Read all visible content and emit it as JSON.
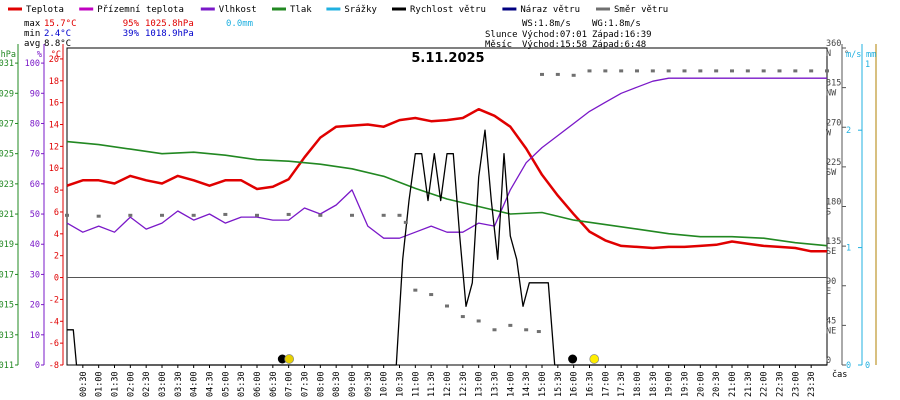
{
  "chart_data": {
    "type": "line",
    "title": "5.11.2025",
    "xlabel": "čas",
    "legend": [
      {
        "name": "Teplota",
        "color": "#e00000"
      },
      {
        "name": "Přízemní teplota",
        "color": "#c000c0"
      },
      {
        "name": "Vlhkost",
        "color": "#7a18c8"
      },
      {
        "name": "Tlak",
        "color": "#228822"
      },
      {
        "name": "Srážky",
        "color": "#20b0e0"
      },
      {
        "name": "Rychlost větru",
        "color": "#000000"
      },
      {
        "name": "Náraz větru",
        "color": "#000080"
      },
      {
        "name": "Směr větru",
        "color": "#707070"
      }
    ],
    "stats": {
      "rows": [
        {
          "label": "max",
          "temp": "15.7°C",
          "hum": "95%",
          "press": "1025.8hPa",
          "rain": "0.0mm"
        },
        {
          "label": "min",
          "temp": "2.4°C",
          "hum": "39%",
          "press": "1018.9hPa"
        },
        {
          "label": "avg",
          "temp": "8.8°C"
        }
      ],
      "wind": {
        "ws": "WS:1.8m/s",
        "wg": "WG:1.8m/s"
      },
      "sun": {
        "label": "Slunce",
        "rise": "Východ:07:01",
        "set": "Západ:16:39"
      },
      "moon": {
        "label": "Měsíc",
        "rise": "Východ:15:58",
        "set": "Západ:6:48"
      }
    },
    "axes": {
      "hpa": {
        "unit": "hPa",
        "ticks": [
          "1031",
          "1029",
          "1027",
          "1025",
          "1023",
          "1021",
          "1019",
          "1017",
          "1015",
          "1013",
          "1011"
        ],
        "range": [
          1011,
          1032
        ]
      },
      "pct": {
        "unit": "%",
        "ticks": [
          "100",
          "90",
          "80",
          "70",
          "60",
          "50",
          "40",
          "30",
          "20",
          "10",
          "0"
        ],
        "range": [
          0,
          105
        ]
      },
      "temp": {
        "unit": "°C",
        "ticks": [
          "20",
          "18",
          "16",
          "14",
          "12",
          "10",
          "8",
          "6",
          "4",
          "2",
          "0",
          "-2",
          "-4",
          "-6",
          "-8"
        ],
        "range": [
          -8,
          21
        ]
      },
      "dir": {
        "unit": "°",
        "ticks": [
          "360",
          "315",
          "270",
          "225",
          "180",
          "135",
          "90",
          "45",
          "0"
        ],
        "labels": [
          "N",
          "NW",
          "W",
          "SW",
          "S",
          "SE",
          "E",
          "NE",
          ""
        ],
        "range": [
          0,
          360
        ]
      },
      "ms": {
        "unit": "m/s",
        "ticks": [
          "2",
          "1",
          "0"
        ],
        "range": [
          0,
          2.7
        ]
      },
      "mm": {
        "unit": "mm",
        "ticks": [
          "1",
          "0"
        ]
      }
    },
    "x_ticks": [
      "00:30",
      "01:00",
      "01:30",
      "02:00",
      "02:30",
      "03:00",
      "03:30",
      "04:00",
      "04:30",
      "05:00",
      "05:30",
      "06:00",
      "06:30",
      "07:00",
      "07:30",
      "08:00",
      "08:30",
      "09:00",
      "09:30",
      "10:00",
      "10:30",
      "11:00",
      "11:30",
      "12:00",
      "12:30",
      "13:00",
      "13:30",
      "14:00",
      "14:30",
      "15:00",
      "15:30",
      "16:00",
      "16:30",
      "17:00",
      "17:30",
      "18:00",
      "18:30",
      "19:00",
      "19:30",
      "20:00",
      "20:30",
      "21:00",
      "21:30",
      "22:00",
      "22:30",
      "23:00",
      "23:30"
    ],
    "x_range_hours": [
      0,
      24
    ],
    "series": [
      {
        "name": "Teplota",
        "unit": "°C",
        "hours": [
          0,
          0.5,
          1,
          1.5,
          2,
          2.5,
          3,
          3.5,
          4,
          4.5,
          5,
          5.5,
          6,
          6.5,
          7,
          7.5,
          8,
          8.5,
          9,
          9.5,
          10,
          10.5,
          11,
          11.5,
          12,
          12.5,
          13,
          13.5,
          14,
          14.5,
          15,
          15.5,
          16,
          16.5,
          17,
          17.5,
          18,
          18.5,
          19,
          19.5,
          20,
          20.5,
          21,
          21.5,
          22,
          22.5,
          23,
          23.5,
          24
        ],
        "values": [
          8.4,
          8.9,
          8.9,
          8.6,
          9.3,
          8.9,
          8.6,
          9.3,
          8.9,
          8.4,
          8.9,
          8.9,
          8.1,
          8.3,
          9.0,
          11.0,
          12.8,
          13.8,
          13.9,
          14.0,
          13.8,
          14.4,
          14.6,
          14.3,
          14.4,
          14.6,
          15.4,
          14.8,
          13.8,
          11.8,
          9.4,
          7.5,
          5.8,
          4.2,
          3.4,
          2.9,
          2.8,
          2.7,
          2.8,
          2.8,
          2.9,
          3.0,
          3.3,
          3.1,
          2.9,
          2.8,
          2.7,
          2.4,
          2.4
        ]
      },
      {
        "name": "Vlhkost",
        "unit": "%",
        "hours": [
          0,
          0.5,
          1,
          1.5,
          2,
          2.5,
          3,
          3.5,
          4,
          4.5,
          5,
          5.5,
          6,
          6.5,
          7,
          7.5,
          8,
          8.5,
          9,
          9.5,
          10,
          10.5,
          11,
          11.5,
          12,
          12.5,
          13,
          13.5,
          14,
          14.5,
          15,
          15.5,
          16,
          16.5,
          17,
          17.5,
          18,
          18.5,
          19,
          19.5,
          20,
          20.5,
          21,
          21.5,
          22,
          22.5,
          23,
          23.5,
          24
        ],
        "values": [
          47,
          44,
          46,
          44,
          49,
          45,
          47,
          51,
          48,
          50,
          47,
          49,
          49,
          48,
          48,
          52,
          50,
          53,
          58,
          46,
          42,
          42,
          44,
          46,
          44,
          44,
          47,
          46,
          58,
          67,
          72,
          76,
          80,
          84,
          87,
          90,
          92,
          94,
          95,
          95,
          95,
          95,
          95,
          95,
          95,
          95,
          95,
          95,
          95
        ]
      },
      {
        "name": "Tlak",
        "unit": "hPa",
        "hours": [
          0,
          1,
          2,
          3,
          4,
          5,
          6,
          7,
          8,
          9,
          10,
          11,
          12,
          13,
          14,
          15,
          16,
          17,
          18,
          19,
          20,
          21,
          22,
          23,
          24
        ],
        "values": [
          1025.8,
          1025.6,
          1025.3,
          1025.0,
          1025.1,
          1024.9,
          1024.6,
          1024.5,
          1024.3,
          1024.0,
          1023.5,
          1022.7,
          1022.0,
          1021.5,
          1021.0,
          1021.1,
          1020.6,
          1020.3,
          1020.0,
          1019.7,
          1019.5,
          1019.5,
          1019.4,
          1019.1,
          1018.9
        ]
      },
      {
        "name": "Rychlost větru",
        "unit": "m/s",
        "hours": [
          0,
          0.2,
          0.3,
          10.4,
          10.6,
          10.8,
          11.0,
          11.2,
          11.4,
          11.6,
          11.8,
          12.0,
          12.2,
          12.4,
          12.6,
          12.8,
          13.0,
          13.2,
          13.4,
          13.6,
          13.8,
          14.0,
          14.2,
          14.4,
          14.6,
          14.8,
          15.0,
          15.2,
          15.4,
          24
        ],
        "values": [
          0.3,
          0.3,
          0.0,
          0.0,
          0.9,
          1.4,
          1.8,
          1.8,
          1.4,
          1.8,
          1.4,
          1.8,
          1.8,
          1.1,
          0.5,
          0.7,
          1.6,
          2.0,
          1.4,
          0.9,
          1.8,
          1.1,
          0.9,
          0.5,
          0.7,
          0.7,
          0.7,
          0.7,
          0.0,
          0.0
        ]
      },
      {
        "name": "Směr větru",
        "unit": "°",
        "hours": [
          0,
          1,
          2,
          3,
          4,
          5,
          6,
          7,
          8,
          9,
          10,
          10.5,
          10.7,
          11,
          11.5,
          12,
          12.5,
          13,
          13.5,
          14,
          14.5,
          14.9,
          15,
          15.5,
          16,
          16.5,
          17,
          17.5,
          18,
          18.5,
          19,
          19.5,
          20,
          20.5,
          21,
          21.5,
          22,
          22.5,
          23,
          23.5,
          24
        ],
        "values": [
          170,
          169,
          170,
          170,
          170,
          171,
          170,
          171,
          170,
          170,
          170,
          170,
          162,
          85,
          80,
          67,
          55,
          50,
          40,
          45,
          40,
          38,
          330,
          330,
          329,
          334,
          334,
          334,
          334,
          334,
          334,
          334,
          334,
          334,
          334,
          334,
          334,
          334,
          334,
          334,
          334
        ]
      }
    ],
    "markers": [
      {
        "type": "moonset",
        "time": "06:48",
        "color": "#000000"
      },
      {
        "type": "sunrise",
        "time": "07:01",
        "color": "#e6d000"
      },
      {
        "type": "moonrise",
        "time": "15:58",
        "color": "#000000"
      },
      {
        "type": "sunset",
        "time": "16:39",
        "color": "#ffee00"
      }
    ]
  }
}
